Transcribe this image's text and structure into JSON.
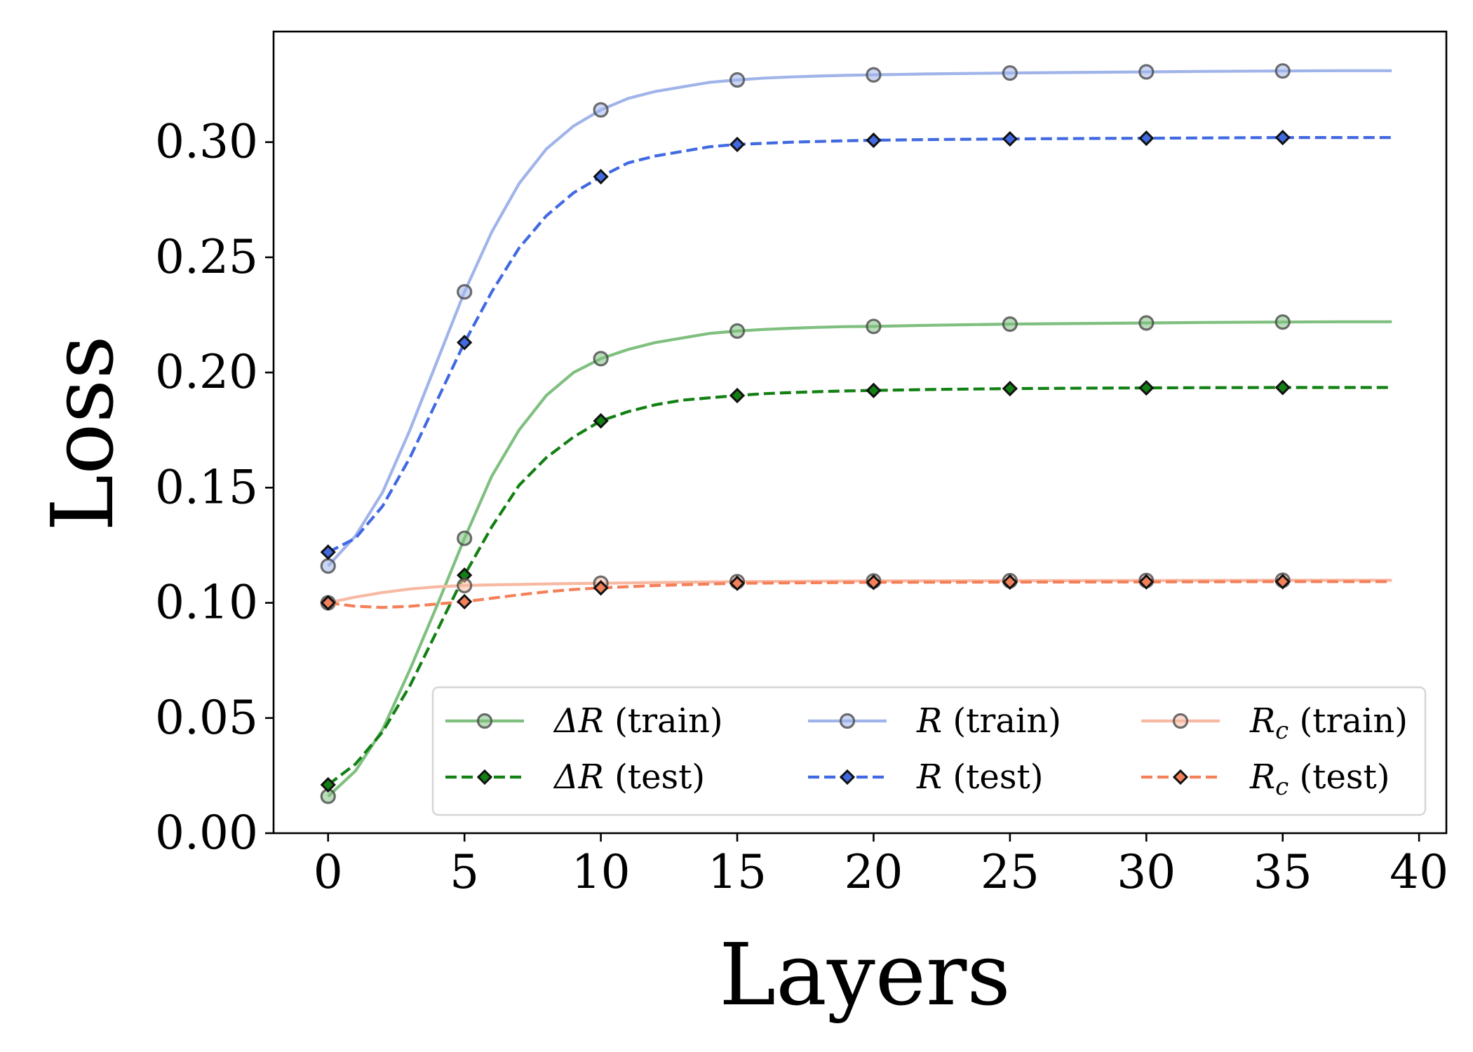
{
  "chart_data": {
    "type": "line",
    "title": "",
    "xlabel": "Layers",
    "ylabel": "Loss",
    "xlim": [
      -2,
      41
    ],
    "ylim": [
      0,
      0.348
    ],
    "xticks": [
      0,
      5,
      10,
      15,
      20,
      25,
      30,
      35,
      40
    ],
    "yticks": [
      0.0,
      0.05,
      0.1,
      0.15,
      0.2,
      0.25,
      0.3
    ],
    "xtick_labels": [
      "0",
      "5",
      "10",
      "15",
      "20",
      "25",
      "30",
      "35",
      "40"
    ],
    "ytick_labels": [
      "0.00",
      "0.05",
      "0.10",
      "0.15",
      "0.20",
      "0.25",
      "0.30"
    ],
    "grid": false,
    "legend_position": "lower-right",
    "series": [
      {
        "name": "ΔR (train)",
        "label_main": "ΔR",
        "label_suffix": " (train)",
        "color": "#7fbf7f",
        "dash": "solid",
        "marker": "circle",
        "x": [
          0,
          1,
          2,
          3,
          4,
          5,
          6,
          7,
          8,
          9,
          10,
          11,
          12,
          13,
          14,
          15,
          16,
          17,
          18,
          19,
          20,
          22,
          25,
          28,
          30,
          32,
          35,
          37,
          39
        ],
        "y": [
          0.016,
          0.027,
          0.045,
          0.071,
          0.099,
          0.128,
          0.155,
          0.175,
          0.19,
          0.2,
          0.206,
          0.21,
          0.213,
          0.215,
          0.217,
          0.218,
          0.2187,
          0.2192,
          0.2196,
          0.2199,
          0.22,
          0.2205,
          0.221,
          0.2213,
          0.2215,
          0.2217,
          0.2219,
          0.222,
          0.222
        ]
      },
      {
        "name": "ΔR (test)",
        "label_main": "ΔR",
        "label_suffix": " (test)",
        "color": "#138013",
        "dash": "dashed",
        "marker": "diamond",
        "x": [
          0,
          1,
          2,
          3,
          4,
          5,
          6,
          7,
          8,
          9,
          10,
          11,
          12,
          13,
          14,
          15,
          16,
          17,
          18,
          19,
          20,
          22,
          25,
          28,
          30,
          32,
          35,
          37,
          39
        ],
        "y": [
          0.021,
          0.03,
          0.044,
          0.064,
          0.088,
          0.112,
          0.133,
          0.151,
          0.163,
          0.172,
          0.179,
          0.183,
          0.186,
          0.188,
          0.189,
          0.19,
          0.1908,
          0.1913,
          0.1917,
          0.192,
          0.1922,
          0.1926,
          0.193,
          0.1932,
          0.1933,
          0.1934,
          0.1935,
          0.1935,
          0.1935
        ]
      },
      {
        "name": "R (train)",
        "label_main": "R",
        "label_suffix": " (train)",
        "color": "#a0b4ea",
        "dash": "solid",
        "marker": "circle",
        "x": [
          0,
          1,
          2,
          3,
          4,
          5,
          6,
          7,
          8,
          9,
          10,
          11,
          12,
          13,
          14,
          15,
          16,
          17,
          18,
          19,
          20,
          22,
          25,
          28,
          30,
          32,
          35,
          37,
          39
        ],
        "y": [
          0.116,
          0.129,
          0.148,
          0.175,
          0.205,
          0.235,
          0.261,
          0.282,
          0.297,
          0.307,
          0.314,
          0.319,
          0.322,
          0.324,
          0.326,
          0.327,
          0.3278,
          0.3283,
          0.3287,
          0.329,
          0.3292,
          0.3296,
          0.33,
          0.3303,
          0.3305,
          0.3307,
          0.3309,
          0.331,
          0.331
        ]
      },
      {
        "name": "R (test)",
        "label_main": "R",
        "label_suffix": " (test)",
        "color": "#4169e1",
        "dash": "dashed",
        "marker": "diamond",
        "x": [
          0,
          1,
          2,
          3,
          4,
          5,
          6,
          7,
          8,
          9,
          10,
          11,
          12,
          13,
          14,
          15,
          16,
          17,
          18,
          19,
          20,
          22,
          25,
          28,
          30,
          32,
          35,
          37,
          39
        ],
        "y": [
          0.122,
          0.128,
          0.142,
          0.163,
          0.188,
          0.213,
          0.235,
          0.254,
          0.268,
          0.278,
          0.285,
          0.291,
          0.294,
          0.296,
          0.298,
          0.299,
          0.2995,
          0.3,
          0.3003,
          0.3006,
          0.3008,
          0.3011,
          0.3014,
          0.3016,
          0.3017,
          0.3018,
          0.302,
          0.302,
          0.302
        ]
      },
      {
        "name": "Rc (train)",
        "label_main": "R",
        "label_sub": "c",
        "label_suffix": " (train)",
        "color": "#f8b9a3",
        "dash": "solid",
        "marker": "circle",
        "x": [
          0,
          1,
          2,
          3,
          4,
          5,
          6,
          7,
          8,
          9,
          10,
          12,
          15,
          20,
          25,
          30,
          35,
          39
        ],
        "y": [
          0.1,
          0.1025,
          0.1045,
          0.106,
          0.107,
          0.1075,
          0.1078,
          0.108,
          0.1082,
          0.1084,
          0.1085,
          0.1088,
          0.1092,
          0.1095,
          0.1096,
          0.1097,
          0.1098,
          0.1098
        ]
      },
      {
        "name": "Rc (test)",
        "label_main": "R",
        "label_sub": "c",
        "label_suffix": " (test)",
        "color": "#f4805a",
        "dash": "dashed",
        "marker": "diamond",
        "x": [
          0,
          1,
          2,
          3,
          4,
          5,
          6,
          7,
          8,
          9,
          10,
          12,
          15,
          20,
          25,
          30,
          35,
          39
        ],
        "y": [
          0.1,
          0.0985,
          0.098,
          0.0985,
          0.0995,
          0.1005,
          0.102,
          0.1035,
          0.1048,
          0.1058,
          0.1065,
          0.1075,
          0.1085,
          0.1089,
          0.109,
          0.1091,
          0.1092,
          0.1092
        ]
      }
    ]
  }
}
